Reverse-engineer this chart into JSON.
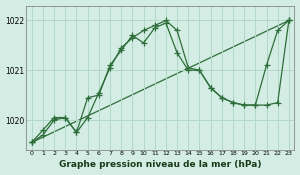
{
  "title": "Graphe pression niveau de la mer (hPa)",
  "background_color": "#d4ede4",
  "grid_color": "#b0d8c8",
  "line_color1": "#2d6e3a",
  "line_color2": "#2d6e3a",
  "line_color3": "#2d6e3a",
  "xlim": [
    -0.5,
    23.5
  ],
  "ylim": [
    1019.4,
    1022.3
  ],
  "yticks": [
    1020,
    1021,
    1022
  ],
  "ylabel_fontsize": 6,
  "xlabel_fontsize": 6.5,
  "series1_x": [
    0,
    1,
    2,
    3,
    4,
    5,
    6,
    7,
    8,
    9,
    10,
    11,
    12,
    13,
    14,
    15,
    16,
    17,
    18,
    19,
    20,
    21,
    22,
    23
  ],
  "series1_y": [
    1019.55,
    1019.8,
    1020.05,
    1020.05,
    1019.75,
    1020.05,
    1020.55,
    1021.05,
    1021.45,
    1021.65,
    1021.8,
    1021.9,
    1022.0,
    1021.8,
    1021.05,
    1021.0,
    1020.65,
    1020.45,
    1020.35,
    1020.3,
    1020.3,
    1020.3,
    1020.35,
    1022.0
  ],
  "series2_x": [
    0,
    1,
    2,
    3,
    4,
    5,
    6,
    7,
    8,
    9,
    10,
    11,
    12,
    13,
    14,
    15,
    16,
    17,
    18,
    19,
    20,
    21,
    22,
    23
  ],
  "series2_y": [
    1019.55,
    1019.7,
    1020.0,
    1020.05,
    1019.75,
    1020.45,
    1020.5,
    1021.1,
    1021.4,
    1021.7,
    1021.55,
    1021.85,
    1021.95,
    1021.35,
    1021.0,
    1021.0,
    1020.65,
    1020.45,
    1020.35,
    1020.3,
    1020.3,
    1021.1,
    1021.8,
    1022.0
  ],
  "series3_x": [
    0,
    23
  ],
  "series3_y": [
    1019.55,
    1022.0
  ],
  "marker": "+",
  "markersize": 4,
  "linewidth": 0.9
}
